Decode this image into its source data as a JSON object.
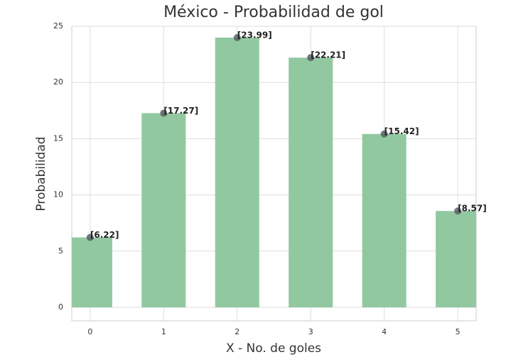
{
  "chart_data": {
    "type": "bar",
    "title": "México - Probabilidad de gol",
    "x_label": "X - No. de goles",
    "y_label": "Probabilidad",
    "x": [
      0,
      1,
      2,
      3,
      4,
      5
    ],
    "values": [
      6.22,
      17.27,
      23.99,
      22.21,
      15.42,
      8.57
    ],
    "value_labels": [
      "[6.22]",
      "[17.27]",
      "[23.99]",
      "[22.21]",
      "[15.42]",
      "[8.57]"
    ],
    "color": "#92c8a0",
    "marker_color": "#5a5f66",
    "xlim": [
      -0.25,
      5.25
    ],
    "xticks": [
      0,
      1,
      2,
      3,
      4,
      5
    ],
    "ylim": [
      -1.2,
      25
    ],
    "yticks": [
      0,
      5,
      10,
      15,
      20,
      25
    ],
    "grid": true
  }
}
